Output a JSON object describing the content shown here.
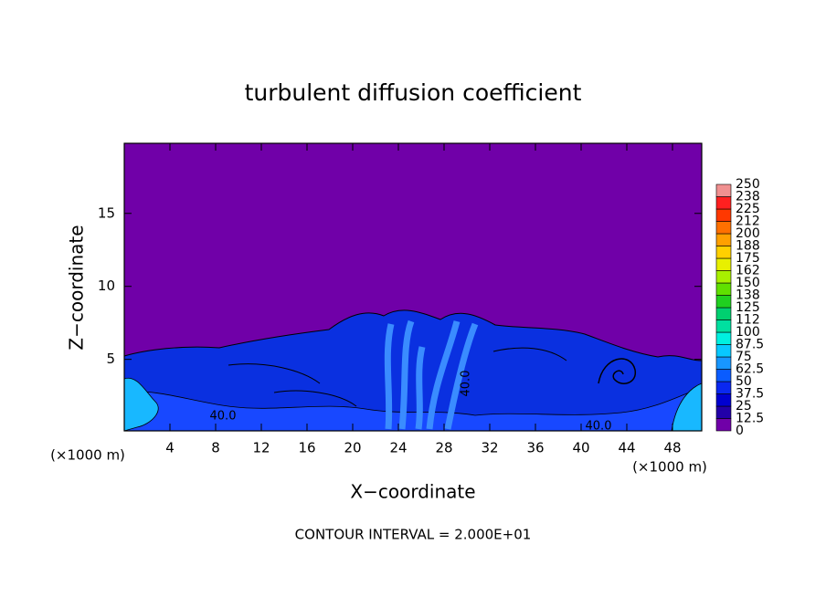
{
  "chart_data": {
    "type": "contour",
    "title": "turbulent diffusion coefficient",
    "xlabel": "X−coordinate",
    "ylabel": "Z−coordinate",
    "x_unit": "(×1000 m)",
    "x_unit_right": "(×1000 m)",
    "note": "CONTOUR INTERVAL = 2.000E+01",
    "xlim": [
      0,
      50.56
    ],
    "ylim": [
      0.1,
      19.8
    ],
    "xticks": [
      4,
      8,
      12,
      16,
      20,
      24,
      28,
      32,
      36,
      40,
      44,
      48
    ],
    "yticks": [
      5,
      10,
      15
    ],
    "contour_labels": [
      "40.0",
      "40.0",
      "40.0"
    ],
    "colorbar": {
      "levels": [
        0,
        12.5,
        25,
        37.5,
        50,
        62.5,
        75,
        87.5,
        100,
        {
          "value": 112.5,
          "label": "112"
        },
        125,
        {
          "value": 137.5,
          "label": "138"
        },
        150,
        {
          "value": 162.5,
          "label": "162"
        },
        175,
        {
          "value": 187.5,
          "label": "188"
        },
        200,
        {
          "value": 212.5,
          "label": "212"
        },
        225,
        {
          "value": 237.5,
          "label": "238"
        },
        250
      ],
      "colors": [
        "#7000a8",
        "#2200a8",
        "#0000d0",
        "#0a28f0",
        "#0a5cff",
        "#1896ff",
        "#08c8ff",
        "#00f0e0",
        "#00e0a0",
        "#00d070",
        "#20d020",
        "#60e000",
        "#a8f000",
        "#e8f000",
        "#ffd000",
        "#ffa000",
        "#ff7000",
        "#ff3800",
        "#ff2020",
        "#f09090"
      ]
    }
  }
}
